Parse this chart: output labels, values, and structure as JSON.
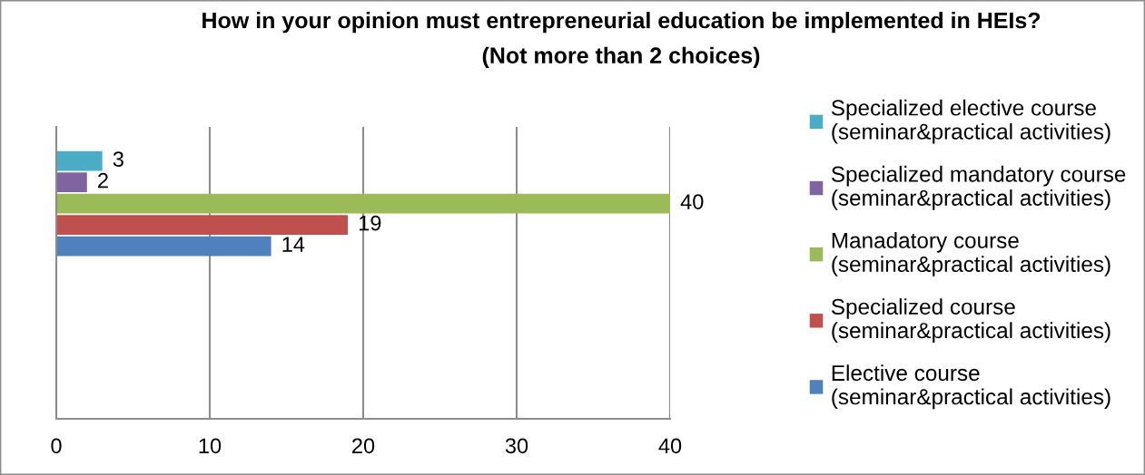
{
  "chart_data": {
    "type": "bar",
    "orientation": "horizontal",
    "title": "How in your opinion must entrepreneurial education be implemented in HEIs?\n(Not more than 2 choices)",
    "categories": [
      null
    ],
    "series": [
      {
        "name": "Elective course\n(seminar&practical activities)",
        "color": "#4f81bd",
        "values": [
          14
        ]
      },
      {
        "name": "Specialized course\n(seminar&practical activities)",
        "color": "#c0504d",
        "values": [
          19
        ]
      },
      {
        "name": "Manadatory course\n(seminar&practical activities)",
        "color": "#9bbb59",
        "values": [
          40
        ]
      },
      {
        "name": "Specialized mandatory course\n(seminar&practical activities)",
        "color": "#8064a2",
        "values": [
          2
        ]
      },
      {
        "name": "Specialized elective course\n(seminar&practical activities)",
        "color": "#4bacc6",
        "values": [
          3
        ]
      }
    ],
    "xlim": [
      0,
      40
    ],
    "xticks": [
      0,
      10,
      20,
      30,
      40
    ],
    "grid": "x",
    "legend": "right",
    "data_labels": true
  }
}
